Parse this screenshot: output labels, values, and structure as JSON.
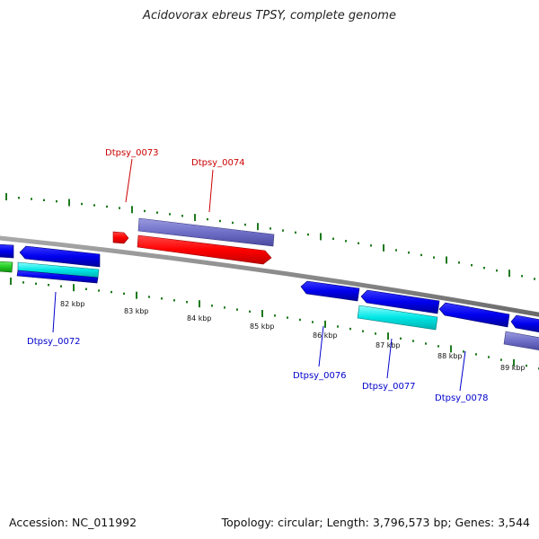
{
  "title": "Acidovorax ebreus TPSY, complete genome",
  "footer": {
    "accession": "Accession: NC_011992",
    "topology": "Topology: circular; Length: 3,796,573 bp; Genes: 3,544"
  },
  "colors": {
    "backbone": "#808080",
    "tick": "#1e7a1e",
    "red": "#ff0000",
    "purple": "#6f6fc8",
    "blue": "#0000ee",
    "cyan": "#00e5e5",
    "green": "#22cc22",
    "tag_red": "#cc0000",
    "tag_blue": "#0000cc"
  },
  "scale_labels": [
    {
      "text": "82 kbp",
      "kbp": 82
    },
    {
      "text": "83 kbp",
      "kbp": 83
    },
    {
      "text": "84 kbp",
      "kbp": 84
    },
    {
      "text": "85 kbp",
      "kbp": 85
    },
    {
      "text": "86 kbp",
      "kbp": 86
    },
    {
      "text": "87 kbp",
      "kbp": 87
    },
    {
      "text": "88 kbp",
      "kbp": 88
    },
    {
      "text": "89 kbp",
      "kbp": 89
    }
  ],
  "genes": [
    {
      "tag": "Dtpsy_0073",
      "color": "red",
      "strand": "+"
    },
    {
      "tag": "Dtpsy_0074",
      "color": "red",
      "strand": "+"
    },
    {
      "tag": "Dtpsy_0072",
      "color": "blue",
      "strand": "-"
    },
    {
      "tag": "Dtpsy_0076",
      "color": "blue",
      "strand": "-"
    },
    {
      "tag": "Dtpsy_0077",
      "color": "blue",
      "strand": "-"
    },
    {
      "tag": "Dtpsy_0078",
      "color": "blue",
      "strand": "-"
    }
  ]
}
